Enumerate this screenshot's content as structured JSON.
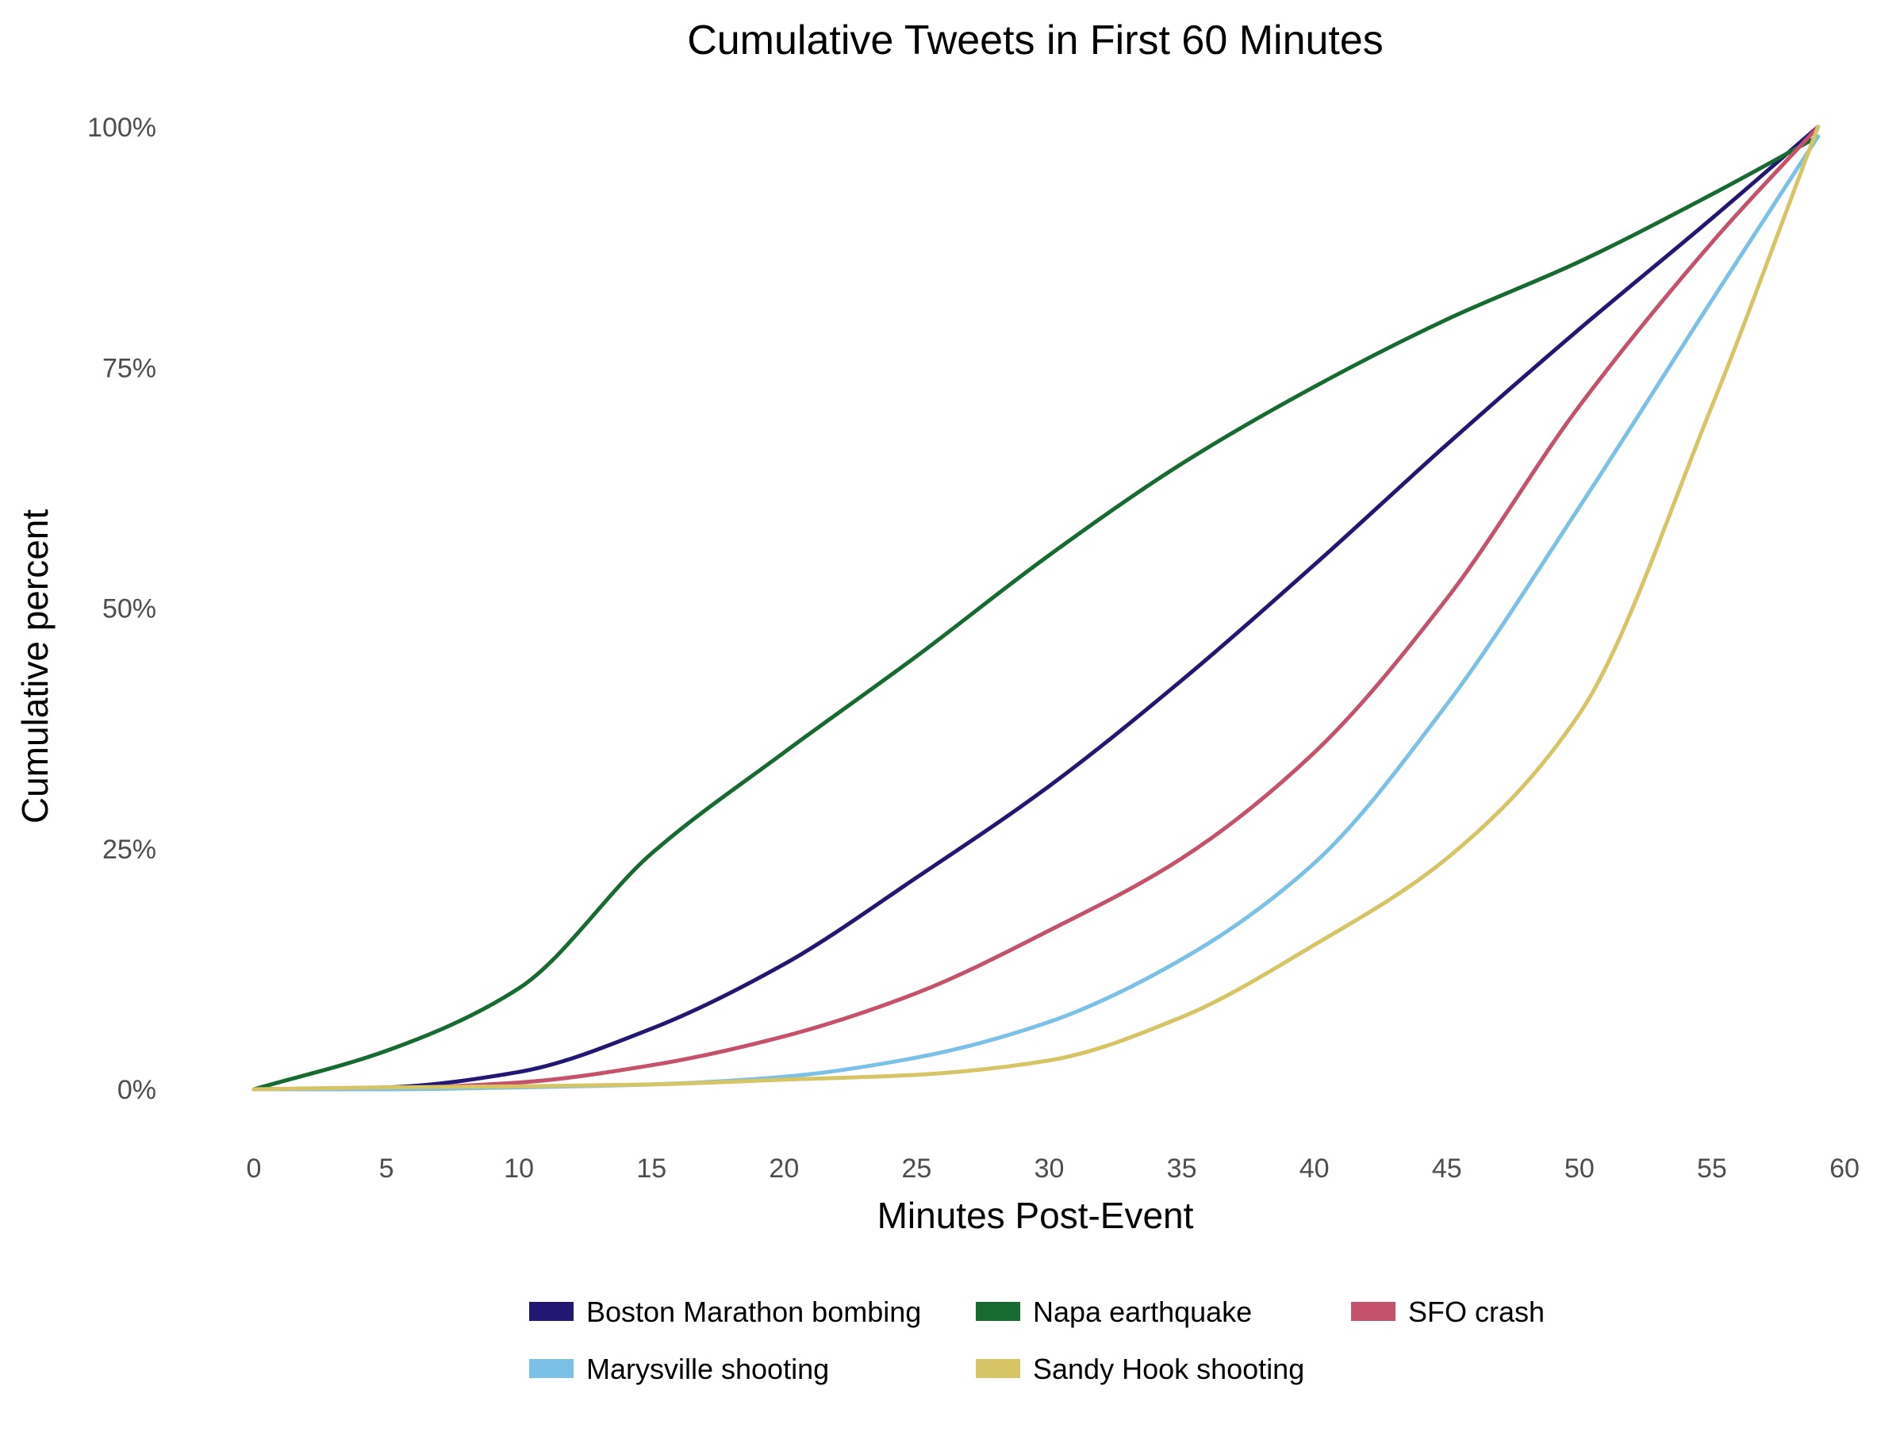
{
  "chart_data": {
    "type": "line",
    "title": "Cumulative Tweets in First 60 Minutes",
    "xlabel": "Minutes Post-Event",
    "ylabel": "Cumulative percent",
    "xlim": [
      0,
      60
    ],
    "ylim": [
      0,
      100
    ],
    "x_ticks": [
      0,
      5,
      10,
      15,
      20,
      25,
      30,
      35,
      40,
      45,
      50,
      55,
      60
    ],
    "x_tick_labels": [
      "0",
      "5",
      "10",
      "15",
      "20",
      "25",
      "30",
      "35",
      "40",
      "45",
      "50",
      "55",
      "60"
    ],
    "y_ticks": [
      0,
      25,
      50,
      75,
      100
    ],
    "y_tick_labels": [
      "0%",
      "25%",
      "50%",
      "75%",
      "100%"
    ],
    "grid": false,
    "legend_position": "bottom",
    "x": [
      0,
      5,
      10,
      15,
      20,
      25,
      30,
      35,
      40,
      45,
      50,
      55,
      59
    ],
    "series": [
      {
        "name": "Boston Marathon bombing",
        "color": "#221873",
        "values": [
          0,
          0.2,
          1.8,
          6.3,
          13,
          22,
          31.5,
          42.5,
          54.5,
          67,
          79,
          90.5,
          100
        ]
      },
      {
        "name": "Napa earthquake",
        "color": "#176a30",
        "values": [
          0,
          4,
          10.5,
          24.5,
          35,
          45,
          55.5,
          65,
          73,
          80,
          86,
          93,
          99
        ]
      },
      {
        "name": "SFO crash",
        "color": "#c5526a",
        "values": [
          0,
          0.1,
          0.7,
          2.5,
          5.5,
          10,
          16.5,
          24,
          35,
          51,
          71,
          88,
          100
        ]
      },
      {
        "name": "Marysville shooting",
        "color": "#7bc0e6",
        "values": [
          0,
          0,
          0.2,
          0.5,
          1.3,
          3.3,
          7,
          13.5,
          23.5,
          40,
          60.5,
          82,
          99
        ]
      },
      {
        "name": "Sandy Hook shooting",
        "color": "#d6c465",
        "values": [
          0,
          0.2,
          0.3,
          0.5,
          1,
          1.5,
          3,
          7.5,
          15,
          24,
          39,
          71,
          100
        ]
      }
    ]
  }
}
